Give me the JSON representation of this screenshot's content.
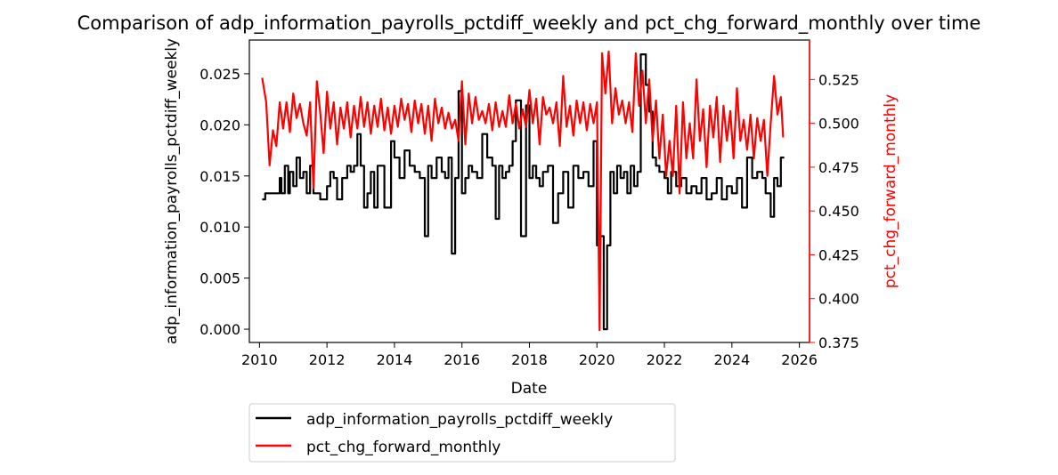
{
  "chart_data": {
    "type": "line",
    "title": "Comparison of adp_information_payrolls_pctdiff_weekly and pct_chg_forward_monthly over time",
    "xlabel": "Date",
    "ylabel_left": "adp_information_payrolls_pctdiff_weekly",
    "ylabel_right": "pct_chg_forward_monthly",
    "xlim": [
      2009.7,
      2026.3
    ],
    "ylim_left": [
      -0.0013,
      0.0283
    ],
    "ylim_right": [
      0.375,
      0.5475
    ],
    "x_ticks": [
      2010,
      2012,
      2014,
      2016,
      2018,
      2020,
      2022,
      2024,
      2026
    ],
    "x_tick_labels": [
      "2010",
      "2012",
      "2014",
      "2016",
      "2018",
      "2020",
      "2022",
      "2024",
      "2026"
    ],
    "y_left_ticks": [
      0.0,
      0.005,
      0.01,
      0.015,
      0.02,
      0.025
    ],
    "y_left_tick_labels": [
      "0.000",
      "0.005",
      "0.010",
      "0.015",
      "0.020",
      "0.025"
    ],
    "y_right_ticks": [
      0.375,
      0.4,
      0.425,
      0.45,
      0.475,
      0.5,
      0.525
    ],
    "y_right_tick_labels": [
      "0.375",
      "0.400",
      "0.425",
      "0.450",
      "0.475",
      "0.500",
      "0.525"
    ],
    "grid": false,
    "legend_position": "below plot, left",
    "series": [
      {
        "name": "adp_information_payrolls_pctdiff_weekly",
        "axis": "left",
        "color": "#000000",
        "x": [
          2010.08,
          2010.17,
          2010.6,
          2010.65,
          2010.75,
          2010.85,
          2010.9,
          2011.0,
          2011.1,
          2011.2,
          2011.3,
          2011.4,
          2011.5,
          2011.6,
          2011.8,
          2012.0,
          2012.1,
          2012.2,
          2012.3,
          2012.45,
          2012.6,
          2012.7,
          2012.8,
          2012.9,
          2013.0,
          2013.1,
          2013.2,
          2013.3,
          2013.4,
          2013.5,
          2013.7,
          2013.9,
          2014.0,
          2014.15,
          2014.3,
          2014.45,
          2014.6,
          2014.75,
          2014.9,
          2015.0,
          2015.1,
          2015.25,
          2015.4,
          2015.5,
          2015.6,
          2015.7,
          2015.8,
          2015.9,
          2016.0,
          2016.1,
          2016.2,
          2016.3,
          2016.45,
          2016.6,
          2016.75,
          2016.9,
          2017.0,
          2017.1,
          2017.2,
          2017.3,
          2017.4,
          2017.5,
          2017.6,
          2017.75,
          2017.9,
          2018.0,
          2018.1,
          2018.2,
          2018.3,
          2018.4,
          2018.55,
          2018.7,
          2018.85,
          2019.0,
          2019.15,
          2019.3,
          2019.45,
          2019.6,
          2019.75,
          2019.9,
          2020.0,
          2020.1,
          2020.2,
          2020.3,
          2020.4,
          2020.5,
          2020.6,
          2020.7,
          2020.8,
          2020.9,
          2021.0,
          2021.1,
          2021.2,
          2021.3,
          2021.45,
          2021.55,
          2021.65,
          2021.75,
          2021.85,
          2022.0,
          2022.1,
          2022.2,
          2022.35,
          2022.5,
          2022.65,
          2022.8,
          2022.95,
          2023.1,
          2023.25,
          2023.4,
          2023.55,
          2023.7,
          2023.85,
          2024.0,
          2024.15,
          2024.3,
          2024.45,
          2024.6,
          2024.75,
          2024.9,
          2025.0,
          2025.15,
          2025.25,
          2025.35,
          2025.45
        ],
        "values": [
          0.0127,
          0.0133,
          0.0148,
          0.0133,
          0.016,
          0.0133,
          0.0154,
          0.014,
          0.0168,
          0.0148,
          0.0154,
          0.0133,
          0.016,
          0.0133,
          0.0127,
          0.014,
          0.0154,
          0.0148,
          0.0127,
          0.0148,
          0.016,
          0.0154,
          0.016,
          0.0191,
          0.016,
          0.0119,
          0.0133,
          0.0154,
          0.0119,
          0.016,
          0.0119,
          0.0184,
          0.0168,
          0.0148,
          0.0175,
          0.016,
          0.0154,
          0.0148,
          0.0091,
          0.016,
          0.0148,
          0.0168,
          0.0154,
          0.0148,
          0.0168,
          0.0074,
          0.0148,
          0.0233,
          0.0133,
          0.0148,
          0.016,
          0.0154,
          0.0148,
          0.0191,
          0.0168,
          0.016,
          0.0108,
          0.016,
          0.0148,
          0.0154,
          0.016,
          0.0184,
          0.0224,
          0.0091,
          0.0219,
          0.0148,
          0.016,
          0.0148,
          0.014,
          0.0154,
          0.016,
          0.0104,
          0.0133,
          0.0154,
          0.0119,
          0.016,
          0.0148,
          0.0154,
          0.014,
          0.0184,
          0.0082,
          0.0091,
          0.0,
          0.0082,
          0.0154,
          0.0133,
          0.016,
          0.0148,
          0.0154,
          0.0133,
          0.016,
          0.014,
          0.0154,
          0.0269,
          0.0239,
          0.0213,
          0.0168,
          0.016,
          0.0154,
          0.0148,
          0.0133,
          0.0154,
          0.014,
          0.0148,
          0.0133,
          0.014,
          0.0133,
          0.0148,
          0.0127,
          0.0133,
          0.0148,
          0.0127,
          0.014,
          0.0133,
          0.0148,
          0.0119,
          0.0168,
          0.0148,
          0.0154,
          0.0148,
          0.0133,
          0.011,
          0.0148,
          0.014,
          0.0168
        ]
      },
      {
        "name": "pct_chg_forward_monthly",
        "axis": "right",
        "color": "#ff0000",
        "x": [
          2010.08,
          2010.2,
          2010.3,
          2010.4,
          2010.5,
          2010.6,
          2010.7,
          2010.8,
          2010.9,
          2011.0,
          2011.1,
          2011.2,
          2011.3,
          2011.4,
          2011.5,
          2011.6,
          2011.7,
          2011.8,
          2011.9,
          2012.0,
          2012.1,
          2012.2,
          2012.3,
          2012.4,
          2012.5,
          2012.6,
          2012.7,
          2012.8,
          2012.9,
          2013.0,
          2013.1,
          2013.2,
          2013.3,
          2013.4,
          2013.5,
          2013.6,
          2013.7,
          2013.8,
          2013.9,
          2014.0,
          2014.1,
          2014.2,
          2014.3,
          2014.4,
          2014.5,
          2014.6,
          2014.7,
          2014.8,
          2014.9,
          2015.0,
          2015.1,
          2015.2,
          2015.3,
          2015.4,
          2015.5,
          2015.6,
          2015.7,
          2015.8,
          2015.9,
          2016.0,
          2016.1,
          2016.2,
          2016.3,
          2016.4,
          2016.5,
          2016.6,
          2016.7,
          2016.8,
          2016.9,
          2017.0,
          2017.1,
          2017.2,
          2017.3,
          2017.4,
          2017.5,
          2017.6,
          2017.7,
          2017.8,
          2017.9,
          2018.0,
          2018.1,
          2018.2,
          2018.3,
          2018.4,
          2018.5,
          2018.6,
          2018.7,
          2018.8,
          2018.9,
          2019.0,
          2019.1,
          2019.2,
          2019.3,
          2019.4,
          2019.5,
          2019.6,
          2019.7,
          2019.8,
          2019.9,
          2020.0,
          2020.08,
          2020.15,
          2020.25,
          2020.35,
          2020.45,
          2020.55,
          2020.65,
          2020.75,
          2020.85,
          2020.95,
          2021.05,
          2021.15,
          2021.25,
          2021.35,
          2021.45,
          2021.55,
          2021.65,
          2021.75,
          2021.85,
          2021.95,
          2022.05,
          2022.15,
          2022.25,
          2022.35,
          2022.45,
          2022.55,
          2022.65,
          2022.75,
          2022.85,
          2022.95,
          2023.05,
          2023.15,
          2023.25,
          2023.35,
          2023.45,
          2023.55,
          2023.65,
          2023.75,
          2023.85,
          2023.95,
          2024.05,
          2024.15,
          2024.25,
          2024.35,
          2024.45,
          2024.55,
          2024.65,
          2024.75,
          2024.85,
          2024.95,
          2025.05,
          2025.15,
          2025.25,
          2025.35,
          2025.45,
          2025.52
        ],
        "values": [
          0.526,
          0.512,
          0.476,
          0.496,
          0.487,
          0.512,
          0.497,
          0.512,
          0.495,
          0.517,
          0.503,
          0.511,
          0.5,
          0.493,
          0.512,
          0.463,
          0.524,
          0.506,
          0.483,
          0.518,
          0.497,
          0.512,
          0.488,
          0.509,
          0.497,
          0.512,
          0.492,
          0.51,
          0.497,
          0.515,
          0.498,
          0.512,
          0.494,
          0.51,
          0.498,
          0.514,
          0.496,
          0.509,
          0.494,
          0.51,
          0.498,
          0.514,
          0.502,
          0.511,
          0.495,
          0.513,
          0.5,
          0.511,
          0.494,
          0.51,
          0.49,
          0.514,
          0.5,
          0.509,
          0.497,
          0.506,
          0.497,
          0.502,
          0.49,
          0.524,
          0.488,
          0.517,
          0.5,
          0.515,
          0.502,
          0.507,
          0.5,
          0.511,
          0.496,
          0.512,
          0.498,
          0.507,
          0.498,
          0.516,
          0.5,
          0.511,
          0.497,
          0.508,
          0.498,
          0.519,
          0.5,
          0.514,
          0.488,
          0.515,
          0.505,
          0.509,
          0.5,
          0.512,
          0.487,
          0.527,
          0.498,
          0.51,
          0.493,
          0.513,
          0.5,
          0.512,
          0.496,
          0.511,
          0.5,
          0.512,
          0.382,
          0.54,
          0.517,
          0.541,
          0.5,
          0.52,
          0.505,
          0.513,
          0.5,
          0.512,
          0.495,
          0.54,
          0.51,
          0.53,
          0.5,
          0.525,
          0.49,
          0.513,
          0.48,
          0.505,
          0.47,
          0.49,
          0.47,
          0.51,
          0.46,
          0.512,
          0.48,
          0.5,
          0.48,
          0.525,
          0.49,
          0.508,
          0.475,
          0.51,
          0.492,
          0.515,
          0.478,
          0.51,
          0.49,
          0.507,
          0.48,
          0.52,
          0.49,
          0.502,
          0.485,
          0.505,
          0.48,
          0.503,
          0.49,
          0.502,
          0.47,
          0.5,
          0.527,
          0.505,
          0.515,
          0.492
        ]
      }
    ]
  }
}
